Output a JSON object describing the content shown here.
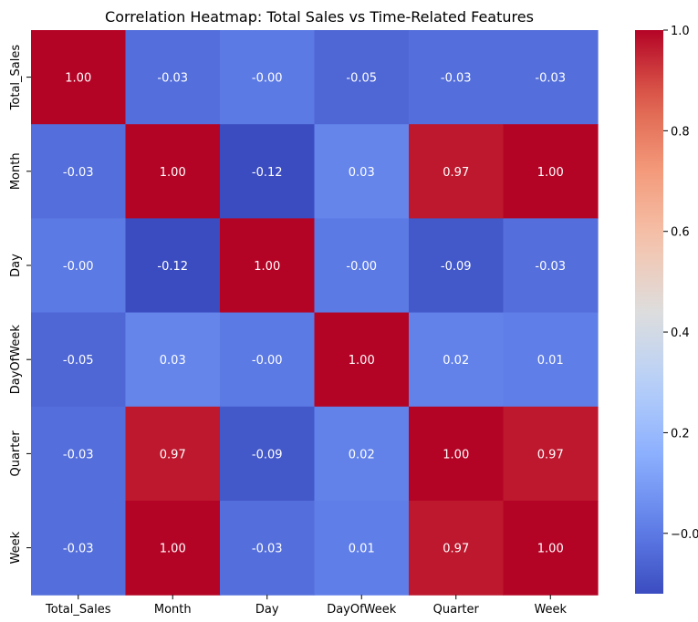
{
  "chart_data": {
    "type": "heatmap",
    "title": "Correlation Heatmap: Total Sales vs Time-Related Features",
    "rows": [
      "Total_Sales",
      "Month",
      "Day",
      "DayOfWeek",
      "Quarter",
      "Week"
    ],
    "columns": [
      "Total_Sales",
      "Month",
      "Day",
      "DayOfWeek",
      "Quarter",
      "Week"
    ],
    "values": [
      [
        1.0,
        -0.03,
        -0.0,
        -0.05,
        -0.03,
        -0.03
      ],
      [
        -0.03,
        1.0,
        -0.12,
        0.03,
        0.97,
        1.0
      ],
      [
        -0.0,
        -0.12,
        1.0,
        -0.0,
        -0.09,
        -0.03
      ],
      [
        -0.05,
        0.03,
        -0.0,
        1.0,
        0.02,
        0.01
      ],
      [
        -0.03,
        0.97,
        -0.09,
        0.02,
        1.0,
        0.97
      ],
      [
        -0.03,
        1.0,
        -0.03,
        0.01,
        0.97,
        1.0
      ]
    ],
    "annotation_format": "2 decimals",
    "colormap": "coolwarm",
    "color_range": [
      -0.12,
      1.0
    ],
    "colorbar": {
      "ticks": [
        -0.0,
        0.2,
        0.4,
        0.6,
        0.8,
        1.0
      ],
      "tick_labels": [
        "−0.0",
        "0.2",
        "0.4",
        "0.6",
        "0.8",
        "1.0"
      ]
    },
    "grid": false,
    "legend": "colorbar-right"
  }
}
